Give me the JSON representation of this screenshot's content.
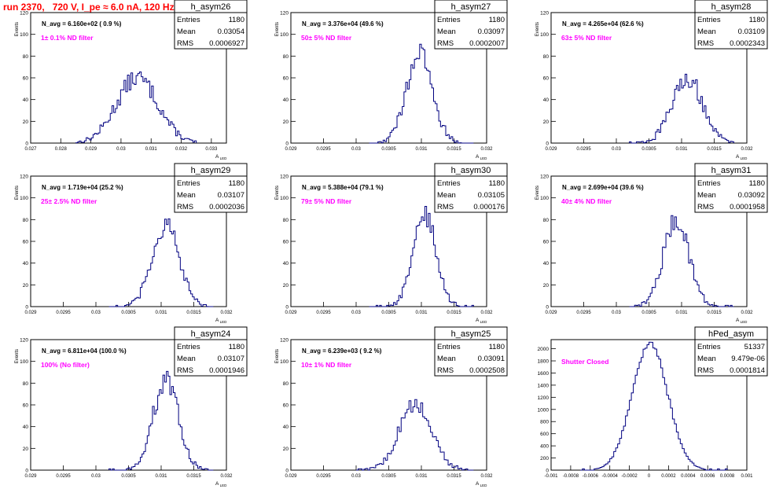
{
  "page": {
    "title": "run 2370,   720 V, I_pe ≈ 6.0 nA, 120 Hz",
    "colors": {
      "title": "#ff0000",
      "annotation": "#ff00ff",
      "histogram": "#000080",
      "frame": "#000000"
    }
  },
  "chart_data": [
    {
      "type": "histogram",
      "name": "h_asym26",
      "stats": {
        "entries": "1180",
        "mean": "0.03054",
        "rms": "0.0006927"
      },
      "navg": "N_avg = 6.160e+02 ( 0.9 %)",
      "note": "1± 0.1% ND filter",
      "xlabel": "A_LED",
      "ylabel": "Events",
      "xlim": [
        0.027,
        0.0335
      ],
      "ylim": [
        0,
        120
      ],
      "xticks": [
        "0.027",
        "0.028",
        "0.029",
        "0.03",
        "0.031",
        "0.032",
        "0.033"
      ],
      "xtick_values": [
        0.027,
        0.028,
        0.029,
        0.03,
        0.031,
        0.032,
        0.033
      ],
      "yticks": [
        0,
        20,
        40,
        60,
        80,
        100,
        120
      ],
      "curve": {
        "mean": 0.03054,
        "sigma": 0.00069,
        "peak": 60,
        "start": 0.0285,
        "end": 0.0325,
        "bins": 70
      }
    },
    {
      "type": "histogram",
      "name": "h_asym27",
      "stats": {
        "entries": "1180",
        "mean": "0.03097",
        "rms": "0.0002007"
      },
      "navg": "N_avg = 3.376e+04 (49.6 %)",
      "note": "50± 5% ND filter",
      "xlabel": "A_LED",
      "ylabel": "Events",
      "xlim": [
        0.029,
        0.032
      ],
      "ylim": [
        0,
        120
      ],
      "xticks": [
        "0.029",
        "0.0295",
        "0.03",
        "0.0305",
        "0.031",
        "0.0315",
        "0.032"
      ],
      "xtick_values": [
        0.029,
        0.0295,
        0.03,
        0.0305,
        0.031,
        0.0315,
        0.032
      ],
      "yticks": [
        0,
        20,
        40,
        60,
        80,
        100,
        120
      ],
      "curve": {
        "mean": 0.03097,
        "sigma": 0.0002,
        "peak": 82,
        "start": 0.0302,
        "end": 0.0318,
        "bins": 60
      }
    },
    {
      "type": "histogram",
      "name": "h_asym28",
      "stats": {
        "entries": "1180",
        "mean": "0.03109",
        "rms": "0.0002343"
      },
      "navg": "N_avg = 4.265e+04 (62.6 %)",
      "note": "63± 5% ND filter",
      "xlabel": "A_LED",
      "ylabel": "Events",
      "xlim": [
        0.029,
        0.032
      ],
      "ylim": [
        0,
        120
      ],
      "xticks": [
        "0.029",
        "0.0295",
        "0.03",
        "0.0305",
        "0.031",
        "0.0315",
        "0.032"
      ],
      "xtick_values": [
        0.029,
        0.0295,
        0.03,
        0.0305,
        0.031,
        0.0315,
        0.032
      ],
      "yticks": [
        0,
        20,
        40,
        60,
        80,
        100,
        120
      ],
      "curve": {
        "mean": 0.03109,
        "sigma": 0.000234,
        "peak": 60,
        "start": 0.0302,
        "end": 0.0318,
        "bins": 60
      }
    },
    {
      "type": "histogram",
      "name": "h_asym29",
      "stats": {
        "entries": "1180",
        "mean": "0.03107",
        "rms": "0.0002036"
      },
      "navg": "N_avg = 1.719e+04 (25.2 %)",
      "note": "25± 2.5% ND filter",
      "xlabel": "A_LED",
      "ylabel": "Events",
      "xlim": [
        0.029,
        0.032
      ],
      "ylim": [
        0,
        120
      ],
      "xticks": [
        "0.029",
        "0.0295",
        "0.03",
        "0.0305",
        "0.031",
        "0.0315",
        "0.032"
      ],
      "xtick_values": [
        0.029,
        0.0295,
        0.03,
        0.0305,
        0.031,
        0.0315,
        0.032
      ],
      "yticks": [
        0,
        20,
        40,
        60,
        80,
        100,
        120
      ],
      "curve": {
        "mean": 0.03107,
        "sigma": 0.000204,
        "peak": 75,
        "start": 0.0302,
        "end": 0.0318,
        "bins": 60
      }
    },
    {
      "type": "histogram",
      "name": "h_asym30",
      "stats": {
        "entries": "1180",
        "mean": "0.03105",
        "rms": "0.000176"
      },
      "navg": "N_avg = 5.388e+04 (79.1 %)",
      "note": "79± 5% ND filter",
      "xlabel": "A_LED",
      "ylabel": "Events",
      "xlim": [
        0.029,
        0.032
      ],
      "ylim": [
        0,
        120
      ],
      "xticks": [
        "0.029",
        "0.0295",
        "0.03",
        "0.0305",
        "0.031",
        "0.0315",
        "0.032"
      ],
      "xtick_values": [
        0.029,
        0.0295,
        0.03,
        0.0305,
        0.031,
        0.0315,
        0.032
      ],
      "yticks": [
        0,
        20,
        40,
        60,
        80,
        100,
        120
      ],
      "curve": {
        "mean": 0.03105,
        "sigma": 0.000176,
        "peak": 84,
        "start": 0.0302,
        "end": 0.0318,
        "bins": 60
      }
    },
    {
      "type": "histogram",
      "name": "h_asym31",
      "stats": {
        "entries": "1180",
        "mean": "0.03092",
        "rms": "0.0001958"
      },
      "navg": "N_avg = 2.699e+04 (39.6 %)",
      "note": "40± 4% ND filter",
      "xlabel": "A_LED",
      "ylabel": "Events",
      "xlim": [
        0.029,
        0.032
      ],
      "ylim": [
        0,
        120
      ],
      "xticks": [
        "0.029",
        "0.0295",
        "0.03",
        "0.0305",
        "0.031",
        "0.0315",
        "0.032"
      ],
      "xtick_values": [
        0.029,
        0.0295,
        0.03,
        0.0305,
        0.031,
        0.0315,
        0.032
      ],
      "yticks": [
        0,
        20,
        40,
        60,
        80,
        100,
        120
      ],
      "curve": {
        "mean": 0.03092,
        "sigma": 0.000196,
        "peak": 80,
        "start": 0.0302,
        "end": 0.0318,
        "bins": 60
      }
    },
    {
      "type": "histogram",
      "name": "h_asym24",
      "stats": {
        "entries": "1180",
        "mean": "0.03107",
        "rms": "0.0001946"
      },
      "navg": "N_avg = 6.811e+04 (100.0 %)",
      "note": "100% (No filter)",
      "xlabel": "A_LED",
      "ylabel": "Events",
      "xlim": [
        0.029,
        0.032
      ],
      "ylim": [
        0,
        120
      ],
      "xticks": [
        "0.029",
        "0.0295",
        "0.03",
        "0.0305",
        "0.031",
        "0.0315",
        "0.032"
      ],
      "xtick_values": [
        0.029,
        0.0295,
        0.03,
        0.0305,
        0.031,
        0.0315,
        0.032
      ],
      "yticks": [
        0,
        20,
        40,
        60,
        80,
        100,
        120
      ],
      "curve": {
        "mean": 0.03107,
        "sigma": 0.000195,
        "peak": 82,
        "start": 0.0302,
        "end": 0.0318,
        "bins": 60
      }
    },
    {
      "type": "histogram",
      "name": "h_asym25",
      "stats": {
        "entries": "1180",
        "mean": "0.03091",
        "rms": "0.0002508"
      },
      "navg": "N_avg = 6.239e+03 ( 9.2 %)",
      "note": "10± 1% ND filter",
      "xlabel": "A_LED",
      "ylabel": "Events",
      "xlim": [
        0.029,
        0.032
      ],
      "ylim": [
        0,
        120
      ],
      "xticks": [
        "0.029",
        "0.0295",
        "0.03",
        "0.0305",
        "0.031",
        "0.0315",
        "0.032"
      ],
      "xtick_values": [
        0.029,
        0.0295,
        0.03,
        0.0305,
        0.031,
        0.0315,
        0.032
      ],
      "yticks": [
        0,
        20,
        40,
        60,
        80,
        100,
        120
      ],
      "curve": {
        "mean": 0.03091,
        "sigma": 0.00025,
        "peak": 60,
        "start": 0.03,
        "end": 0.0318,
        "bins": 60
      }
    },
    {
      "type": "histogram",
      "name": "hPed_asym",
      "stats": {
        "entries": "51337",
        "mean": "9.479e-06",
        "rms": "0.0001814"
      },
      "navg": "",
      "note": "Shutter Closed",
      "xlabel": "",
      "ylabel": "",
      "xlim": [
        -0.001,
        0.001
      ],
      "ylim": [
        0,
        2150
      ],
      "xticks": [
        "-0.001",
        "-0.0008",
        "-0.0006",
        "-0.0004",
        "-0.0002",
        "0",
        "0.0002",
        "0.0004",
        "0.0006",
        "0.0008",
        "0.001"
      ],
      "xtick_values": [
        -0.001,
        -0.0008,
        -0.0006,
        -0.0004,
        -0.0002,
        0,
        0.0002,
        0.0004,
        0.0006,
        0.0008,
        0.001
      ],
      "yticks": [
        0,
        200,
        400,
        600,
        800,
        1000,
        1200,
        1400,
        1600,
        1800,
        2000
      ],
      "curve": {
        "mean": 9.5e-06,
        "sigma": 0.000181,
        "peak": 2090,
        "start": -0.0007,
        "end": 0.0008,
        "bins": 75
      }
    }
  ]
}
